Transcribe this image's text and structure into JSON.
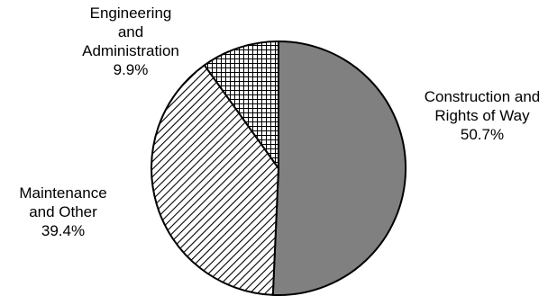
{
  "chart_data": {
    "type": "pie",
    "title": "",
    "start_angle_deg": 0,
    "direction": "clockwise",
    "slices": [
      {
        "label_lines": [
          "Construction and",
          "Rights of Way"
        ],
        "value": 50.7,
        "value_text": "50.7%",
        "fill": "solid",
        "color": "#808080"
      },
      {
        "label_lines": [
          "Maintenance",
          "and Other"
        ],
        "value": 39.4,
        "value_text": "39.4%",
        "fill": "diagonal-hatch",
        "color": "#000000"
      },
      {
        "label_lines": [
          "Engineering",
          "and",
          "Administration"
        ],
        "value": 9.9,
        "value_text": "9.9%",
        "fill": "crosshatch",
        "color": "#000000"
      }
    ]
  }
}
